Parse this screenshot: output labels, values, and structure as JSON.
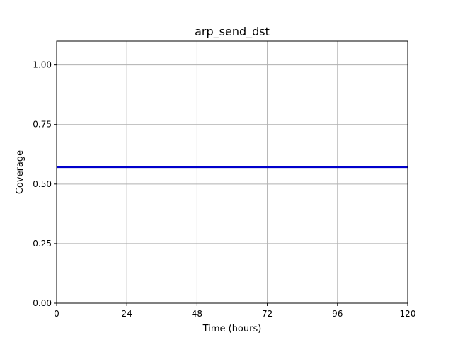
{
  "chart_data": {
    "type": "line",
    "title": "arp_send_dst",
    "xlabel": "Time (hours)",
    "ylabel": "Coverage",
    "xlim": [
      0,
      120
    ],
    "ylim": [
      0,
      1.1
    ],
    "xticks": [
      0,
      24,
      48,
      72,
      96,
      120
    ],
    "xtick_labels": [
      "0",
      "24",
      "48",
      "72",
      "96",
      "120"
    ],
    "yticks": [
      0,
      0.25,
      0.5,
      0.75,
      1.0
    ],
    "ytick_labels": [
      "0.00",
      "0.25",
      "0.50",
      "0.75",
      "1.00"
    ],
    "grid": true,
    "series": [
      {
        "color": "#0000cc",
        "x": [
          0,
          120
        ],
        "y": [
          0.571,
          0.571
        ]
      }
    ]
  }
}
